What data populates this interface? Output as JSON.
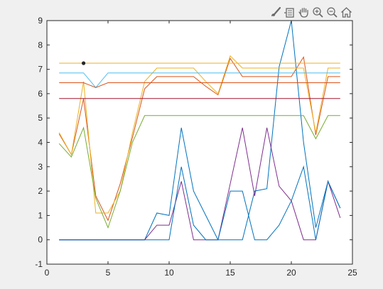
{
  "toolbar": {
    "icons": [
      "brush-icon",
      "data-cursor-icon",
      "pan-hand-icon",
      "zoom-in-icon",
      "zoom-out-icon",
      "home-icon"
    ]
  },
  "colors": {
    "background": "#f0f0f0",
    "axes": "#ffffff",
    "axis_line": "#262626",
    "blue": "#0072BD",
    "orange": "#D95319",
    "yellow": "#EDB120",
    "purple": "#7E2F8E",
    "green": "#77AC30",
    "cyan": "#4DBEEE",
    "red": "#A2142F"
  },
  "chart_data": {
    "type": "line",
    "xlim": [
      0,
      25
    ],
    "ylim": [
      -1,
      9
    ],
    "xticks": [
      "0",
      "5",
      "10",
      "15",
      "20",
      "25"
    ],
    "yticks": [
      "-1",
      "0",
      "1",
      "2",
      "3",
      "4",
      "5",
      "6",
      "7",
      "8",
      "9"
    ],
    "grid": false,
    "x": [
      1,
      2,
      3,
      4,
      5,
      6,
      7,
      8,
      9,
      10,
      11,
      12,
      13,
      14,
      15,
      16,
      17,
      18,
      19,
      20,
      21,
      22,
      23,
      24
    ],
    "series": [
      {
        "color": "#0072BD",
        "values": [
          0,
          0,
          0,
          0,
          0,
          0,
          0,
          0,
          1.1,
          1.0,
          4.6,
          2.0,
          1.0,
          0,
          0,
          0,
          2.0,
          2.1,
          7.1,
          9.0,
          4.0,
          0.5,
          2.4,
          1.3
        ]
      },
      {
        "color": "#D95319",
        "values": [
          4.35,
          3.5,
          5.8,
          1.8,
          0.8,
          2.3,
          4.2,
          6.2,
          6.7,
          6.7,
          6.7,
          6.7,
          6.3,
          5.95,
          7.45,
          6.7,
          6.7,
          6.7,
          6.7,
          6.7,
          7.5,
          4.3,
          6.7,
          6.7
        ]
      },
      {
        "color": "#EDB120",
        "values": [
          7.25,
          7.25,
          7.25,
          7.25,
          7.25,
          7.25,
          7.25,
          7.25,
          7.25,
          7.25,
          7.25,
          7.25,
          7.25,
          7.25,
          7.25,
          7.25,
          7.25,
          7.25,
          7.25,
          7.25,
          7.25,
          7.25,
          7.25,
          7.25
        ]
      },
      {
        "color": "#EDB120",
        "values": [
          4.4,
          3.5,
          6.5,
          1.1,
          1.1,
          2.0,
          4.4,
          6.5,
          7.05,
          7.05,
          7.05,
          7.05,
          6.5,
          6.0,
          7.55,
          7.05,
          7.05,
          7.05,
          7.05,
          7.05,
          7.05,
          4.4,
          7.05,
          7.05
        ]
      },
      {
        "color": "#7E2F8E",
        "values": [
          0,
          0,
          0,
          0,
          0,
          0,
          0,
          0,
          0.6,
          0.6,
          2.4,
          0,
          0,
          0,
          2.3,
          4.6,
          1.8,
          4.6,
          2.2,
          1.6,
          0,
          0,
          2.4,
          0.9
        ]
      },
      {
        "color": "#77AC30",
        "values": [
          3.95,
          3.4,
          4.6,
          1.7,
          0.5,
          2.0,
          4.0,
          5.1,
          5.1,
          5.1,
          5.1,
          5.1,
          5.1,
          5.1,
          5.1,
          5.1,
          5.1,
          5.1,
          5.1,
          5.1,
          5.1,
          4.15,
          5.1,
          5.1
        ]
      },
      {
        "color": "#4DBEEE",
        "values": [
          6.85,
          6.85,
          6.85,
          6.25,
          6.85,
          6.85,
          6.85,
          6.85,
          6.85,
          6.85,
          6.85,
          6.85,
          6.85,
          6.85,
          6.85,
          6.85,
          6.85,
          6.85,
          6.85,
          6.85,
          6.85,
          6.85,
          6.85,
          6.85
        ]
      },
      {
        "color": "#D95319",
        "values": [
          6.45,
          6.45,
          6.45,
          6.25,
          6.45,
          6.45,
          6.45,
          6.45,
          6.45,
          6.45,
          6.45,
          6.45,
          6.45,
          6.45,
          6.45,
          6.45,
          6.45,
          6.45,
          6.45,
          6.45,
          6.45,
          6.45,
          6.45,
          6.45
        ]
      },
      {
        "color": "#A2142F",
        "values": [
          5.8,
          5.8,
          5.8,
          5.8,
          5.8,
          5.8,
          5.8,
          5.8,
          5.8,
          5.8,
          5.8,
          5.8,
          5.8,
          5.8,
          5.8,
          5.8,
          5.8,
          5.8,
          5.8,
          5.8,
          5.8,
          5.8,
          5.8,
          5.8
        ]
      },
      {
        "color": "#0072BD",
        "values": [
          0,
          0,
          0,
          0,
          0,
          0,
          0,
          0,
          0,
          0,
          3.0,
          0.6,
          0,
          0,
          2.0,
          2.0,
          0,
          0,
          0.6,
          1.6,
          3.0,
          0,
          2.4,
          1.3
        ]
      }
    ],
    "markers": [
      {
        "x": 3,
        "y": 7.25,
        "color": "#262626"
      }
    ]
  }
}
